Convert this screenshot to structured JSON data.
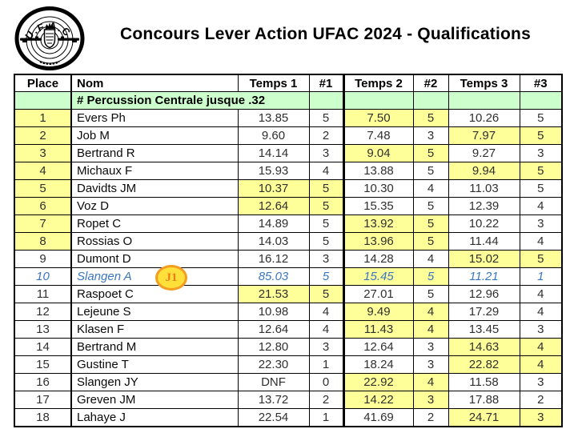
{
  "page": {
    "title": "Concours Lever Action UFAC 2024 - Qualifications"
  },
  "logo": {
    "name": "ufac-club-emblem",
    "arc_text": "U.F.A.C"
  },
  "colors": {
    "highlight_yellow": "#ffff99",
    "category_green": "#ccffcc",
    "special_row_blue": "#3b76c0",
    "badge_fill": "#ffdf3a",
    "badge_border": "#f59d20",
    "badge_text": "#ed7c1c"
  },
  "table": {
    "headers": [
      "Place",
      "Nom",
      "Temps 1",
      "#1",
      "Temps 2",
      "#2",
      "Temps 3",
      "#3"
    ],
    "category_row": {
      "label": "# Percussion Centrale jusque .32"
    },
    "rows": [
      {
        "place": "1",
        "nom": "Evers Ph",
        "t1": "13.85",
        "h1": "5",
        "t2": "7.50",
        "h2": "5",
        "t3": "10.26",
        "h3": "5",
        "best": 2,
        "place_hl": true,
        "special": false
      },
      {
        "place": "2",
        "nom": "Job M",
        "t1": "9.60",
        "h1": "2",
        "t2": "7.48",
        "h2": "3",
        "t3": "7.97",
        "h3": "5",
        "best": 3,
        "place_hl": true,
        "special": false
      },
      {
        "place": "3",
        "nom": "Bertrand R",
        "t1": "14.14",
        "h1": "3",
        "t2": "9.04",
        "h2": "5",
        "t3": "9.27",
        "h3": "3",
        "best": 2,
        "place_hl": true,
        "special": false
      },
      {
        "place": "4",
        "nom": "Michaux F",
        "t1": "15.93",
        "h1": "4",
        "t2": "13.88",
        "h2": "5",
        "t3": "9.94",
        "h3": "5",
        "best": 3,
        "place_hl": true,
        "special": false
      },
      {
        "place": "5",
        "nom": "Davidts JM",
        "t1": "10.37",
        "h1": "5",
        "t2": "10.30",
        "h2": "4",
        "t3": "11.03",
        "h3": "5",
        "best": 1,
        "place_hl": true,
        "special": false
      },
      {
        "place": "6",
        "nom": "Voz D",
        "t1": "12.64",
        "h1": "5",
        "t2": "15.35",
        "h2": "5",
        "t3": "12.39",
        "h3": "4",
        "best": 1,
        "place_hl": true,
        "special": false
      },
      {
        "place": "7",
        "nom": "Ropet C",
        "t1": "14.89",
        "h1": "5",
        "t2": "13.92",
        "h2": "5",
        "t3": "10.22",
        "h3": "3",
        "best": 2,
        "place_hl": true,
        "special": false
      },
      {
        "place": "8",
        "nom": "Rossias O",
        "t1": "14.03",
        "h1": "5",
        "t2": "13.96",
        "h2": "5",
        "t3": "11.44",
        "h3": "4",
        "best": 2,
        "place_hl": true,
        "special": false
      },
      {
        "place": "9",
        "nom": "Dumont D",
        "t1": "16.12",
        "h1": "3",
        "t2": "14.28",
        "h2": "4",
        "t3": "15.02",
        "h3": "5",
        "best": 3,
        "place_hl": false,
        "special": false
      },
      {
        "place": "10",
        "nom": "Slangen A",
        "badge": "J1",
        "t1": "85.03",
        "h1": "5",
        "t2": "15.45",
        "h2": "5",
        "t3": "11.21",
        "h3": "1",
        "best": 2,
        "place_hl": false,
        "special": true
      },
      {
        "place": "11",
        "nom": "Raspoet C",
        "t1": "21.53",
        "h1": "5",
        "t2": "27.01",
        "h2": "5",
        "t3": "12.96",
        "h3": "4",
        "best": 1,
        "place_hl": false,
        "special": false
      },
      {
        "place": "12",
        "nom": "Lejeune S",
        "t1": "10.98",
        "h1": "4",
        "t2": "9.49",
        "h2": "4",
        "t3": "17.29",
        "h3": "4",
        "best": 2,
        "place_hl": false,
        "special": false
      },
      {
        "place": "13",
        "nom": "Klasen F",
        "t1": "12.64",
        "h1": "4",
        "t2": "11.43",
        "h2": "4",
        "t3": "13.45",
        "h3": "3",
        "best": 2,
        "place_hl": false,
        "special": false
      },
      {
        "place": "14",
        "nom": "Bertrand M",
        "t1": "12.80",
        "h1": "3",
        "t2": "12.64",
        "h2": "3",
        "t3": "14.63",
        "h3": "4",
        "best": 3,
        "place_hl": false,
        "special": false
      },
      {
        "place": "15",
        "nom": "Gustine T",
        "t1": "22.30",
        "h1": "1",
        "t2": "18.24",
        "h2": "3",
        "t3": "22.82",
        "h3": "4",
        "best": 3,
        "place_hl": false,
        "special": false
      },
      {
        "place": "16",
        "nom": "Slangen JY",
        "t1": "DNF",
        "h1": "0",
        "t2": "22.92",
        "h2": "4",
        "t3": "11.58",
        "h3": "3",
        "best": 2,
        "place_hl": false,
        "special": false
      },
      {
        "place": "17",
        "nom": "Greven JM",
        "t1": "13.72",
        "h1": "2",
        "t2": "14.22",
        "h2": "3",
        "t3": "17.88",
        "h3": "2",
        "best": 2,
        "place_hl": false,
        "special": false
      },
      {
        "place": "18",
        "nom": "Lahaye J",
        "t1": "22.54",
        "h1": "1",
        "t2": "41.69",
        "h2": "2",
        "t3": "24.71",
        "h3": "3",
        "best": 3,
        "place_hl": false,
        "special": false
      }
    ]
  }
}
